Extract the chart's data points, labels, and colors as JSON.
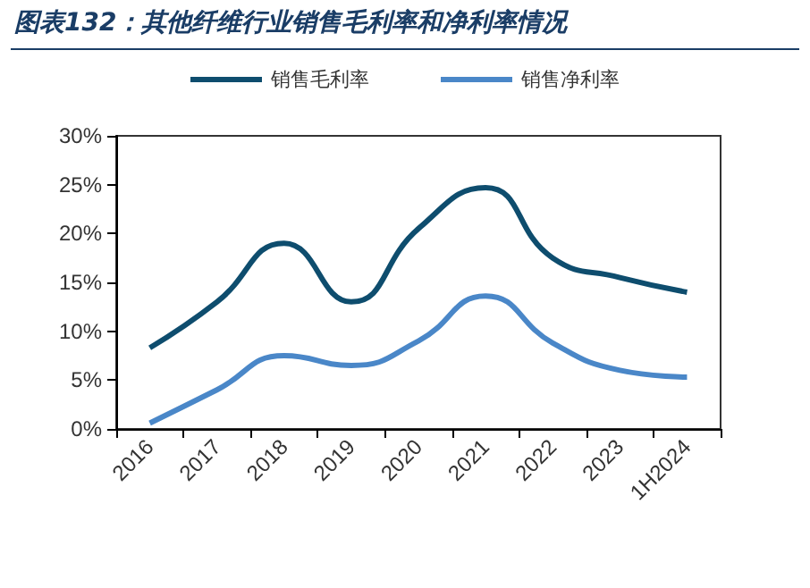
{
  "chart_data": {
    "type": "line",
    "title": "图表132：其他纤维行业销售毛利率和净利率情况",
    "categories": [
      "2016",
      "2017",
      "2018",
      "2019",
      "2020",
      "2021",
      "2022",
      "2023",
      "1H2024"
    ],
    "series": [
      {
        "name": "销售毛利率",
        "color": "#0e4d6e",
        "values": [
          8.3,
          13,
          19,
          13,
          20.5,
          24.7,
          17.5,
          15.5,
          14
        ]
      },
      {
        "name": "销售净利率",
        "color": "#4a87c8",
        "values": [
          0.6,
          4,
          7.5,
          6.5,
          9,
          13.6,
          8.8,
          6,
          5.3
        ]
      }
    ],
    "ylim": [
      0,
      30
    ],
    "yticks": [
      {
        "value": 0,
        "label": "0%"
      },
      {
        "value": 5,
        "label": "5%"
      },
      {
        "value": 10,
        "label": "10%"
      },
      {
        "value": 15,
        "label": "15%"
      },
      {
        "value": 20,
        "label": "20%"
      },
      {
        "value": 25,
        "label": "25%"
      },
      {
        "value": 30,
        "label": "30%"
      }
    ],
    "grid": false,
    "legend": "top",
    "marker": "none",
    "line_style": "solid"
  }
}
